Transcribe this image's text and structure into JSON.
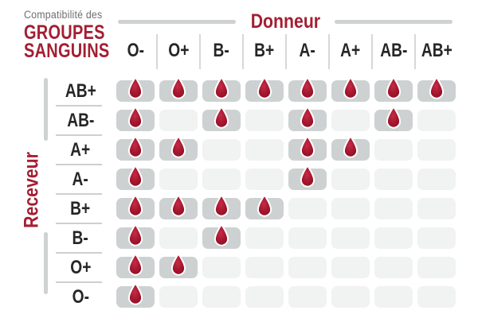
{
  "title": {
    "subtitle": "Compatibilité des",
    "line1": "GROUPES",
    "line2": "SANGUINS"
  },
  "axes": {
    "donor_label": "Donneur",
    "receiver_label": "Receveur"
  },
  "chart_data": {
    "type": "heatmap",
    "title": "Compatibilité des groupes sanguins",
    "x_axis_label": "Donneur",
    "y_axis_label": "Receveur",
    "columns": [
      "O-",
      "O+",
      "B-",
      "B+",
      "A-",
      "A+",
      "AB-",
      "AB+"
    ],
    "rows": [
      {
        "label": "AB+",
        "drops": [
          1,
          1,
          1,
          1,
          1,
          1,
          1,
          1
        ]
      },
      {
        "label": "AB-",
        "drops": [
          1,
          0,
          1,
          0,
          1,
          0,
          1,
          0
        ]
      },
      {
        "label": "A+",
        "drops": [
          1,
          1,
          0,
          0,
          1,
          1,
          0,
          0
        ]
      },
      {
        "label": "A-",
        "drops": [
          1,
          0,
          0,
          0,
          1,
          0,
          0,
          0
        ]
      },
      {
        "label": "B+",
        "drops": [
          1,
          1,
          1,
          1,
          0,
          0,
          0,
          0
        ]
      },
      {
        "label": "B-",
        "drops": [
          1,
          0,
          1,
          0,
          0,
          0,
          0,
          0
        ]
      },
      {
        "label": "O+",
        "drops": [
          1,
          1,
          0,
          0,
          0,
          0,
          0,
          0
        ]
      },
      {
        "label": "O-",
        "drops": [
          1,
          0,
          0,
          0,
          0,
          0,
          0,
          0
        ]
      }
    ],
    "cell_marker": "blood-drop-icon",
    "legend": "cell with drop = compatible, empty cell = incompatible"
  },
  "colors": {
    "accent_red": "#a41e33",
    "drop_dark": "#8d0f26",
    "drop_light": "#c62b49",
    "drop_stroke": "#ffffff",
    "bar_gray": "#cfd2d2",
    "cell_filled": "#cdd1d1",
    "cell_empty": "#f1f2f2",
    "text_dark": "#262626",
    "text_gray": "#6f6f6f"
  }
}
